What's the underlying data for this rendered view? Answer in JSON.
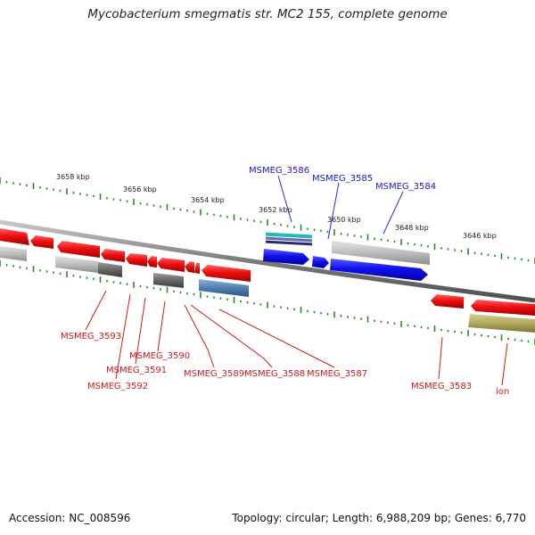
{
  "title": "Mycobacterium smegmatis str. MC2 155, complete genome",
  "footer": {
    "accession": "Accession: NC_008596",
    "summary": "Topology: circular; Length: 6,988,209 bp; Genes: 6,770"
  },
  "ticks": [
    {
      "label": "3658 kbp",
      "x": 3658
    },
    {
      "label": "3656 kbp",
      "x": 3656
    },
    {
      "label": "3654 kbp",
      "x": 3654
    },
    {
      "label": "3652 kbp",
      "x": 3652
    },
    {
      "label": "3650 kbp",
      "x": 3650
    },
    {
      "label": "3648 kbp",
      "x": 3648
    },
    {
      "label": "3646 kbp",
      "x": 3646
    }
  ],
  "top_labels": [
    {
      "name": "MSMEG_3586",
      "color": "#1a1acc"
    },
    {
      "name": "MSMEG_3585",
      "color": "#1a1acc"
    },
    {
      "name": "MSMEG_3584",
      "color": "#1a1acc"
    }
  ],
  "bottom_labels": [
    {
      "name": "MSMEG_3593",
      "color": "#cc1a1a"
    },
    {
      "name": "MSMEG_3590",
      "color": "#cc1a1a"
    },
    {
      "name": "MSMEG_3591",
      "color": "#cc1a1a"
    },
    {
      "name": "MSMEG_3592",
      "color": "#cc1a1a"
    },
    {
      "name": "MSMEG_3589",
      "color": "#cc1a1a"
    },
    {
      "name": "MSMEG_3588",
      "color": "#cc1a1a"
    },
    {
      "name": "MSMEG_3587",
      "color": "#cc1a1a"
    },
    {
      "name": "MSMEG_3583",
      "color": "#cc1a1a"
    },
    {
      "name": "lon",
      "color": "#cc1a1a"
    }
  ],
  "colors": {
    "forward_gene": "#1010ee",
    "reverse_gene": "#ee1010",
    "backbone": "#888888",
    "tick": "#2a8a2a"
  }
}
